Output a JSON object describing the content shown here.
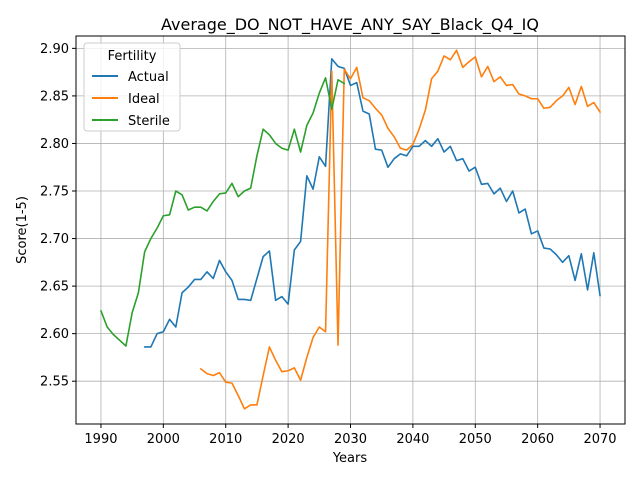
{
  "chart_data": {
    "type": "line",
    "title": "Average_DO_NOT_HAVE_ANY_SAY_Black_Q4_IQ",
    "xlabel": "Years",
    "ylabel": "Score(1-5)",
    "xlim": [
      1986,
      2074
    ],
    "ylim": [
      2.505,
      2.913
    ],
    "xticks": [
      1990,
      2000,
      2010,
      2020,
      2030,
      2040,
      2050,
      2060,
      2070
    ],
    "yticks": [
      2.55,
      2.6,
      2.65,
      2.7,
      2.75,
      2.8,
      2.85,
      2.9
    ],
    "ytick_labels": [
      "2.55",
      "2.60",
      "2.65",
      "2.70",
      "2.75",
      "2.80",
      "2.85",
      "2.90"
    ],
    "grid": true,
    "legend": {
      "title": "Fertility",
      "placement": "top-left"
    },
    "series": [
      {
        "name": "Actual",
        "color": "#1f77b4",
        "x": [
          1997,
          1998,
          1999,
          2000,
          2001,
          2002,
          2003,
          2004,
          2005,
          2006,
          2007,
          2008,
          2009,
          2010,
          2011,
          2012,
          2013,
          2014,
          2015,
          2016,
          2017,
          2018,
          2019,
          2020,
          2021,
          2022,
          2023,
          2024,
          2025,
          2026,
          2027,
          2028,
          2029,
          2030,
          2031,
          2032,
          2033,
          2034,
          2035,
          2036,
          2037,
          2038,
          2039,
          2040,
          2041,
          2042,
          2043,
          2044,
          2045,
          2046,
          2047,
          2048,
          2049,
          2050,
          2051,
          2052,
          2053,
          2054,
          2055,
          2056,
          2057,
          2058,
          2059,
          2060,
          2061,
          2062,
          2063,
          2064,
          2065,
          2066,
          2067,
          2068,
          2069,
          2070
        ],
        "values": [
          2.586,
          2.586,
          2.6,
          2.602,
          2.615,
          2.607,
          2.643,
          2.649,
          2.657,
          2.657,
          2.665,
          2.658,
          2.677,
          2.665,
          2.656,
          2.636,
          2.636,
          2.635,
          2.658,
          2.681,
          2.687,
          2.635,
          2.639,
          2.631,
          2.688,
          2.697,
          2.766,
          2.752,
          2.786,
          2.776,
          2.889,
          2.881,
          2.879,
          2.861,
          2.864,
          2.834,
          2.831,
          2.794,
          2.793,
          2.775,
          2.784,
          2.789,
          2.787,
          2.797,
          2.797,
          2.803,
          2.797,
          2.805,
          2.791,
          2.797,
          2.782,
          2.784,
          2.771,
          2.775,
          2.757,
          2.758,
          2.747,
          2.753,
          2.739,
          2.75,
          2.727,
          2.731,
          2.705,
          2.708,
          2.69,
          2.689,
          2.683,
          2.675,
          2.682,
          2.656,
          2.684,
          2.646,
          2.685,
          2.64
        ]
      },
      {
        "name": "Ideal",
        "color": "#ff7f0e",
        "x": [
          2006,
          2007,
          2008,
          2009,
          2010,
          2011,
          2012,
          2013,
          2014,
          2015,
          2016,
          2017,
          2018,
          2019,
          2020,
          2021,
          2022,
          2023,
          2024,
          2025,
          2026,
          2027,
          2028,
          2029,
          2030,
          2031,
          2032,
          2033,
          2034,
          2035,
          2036,
          2037,
          2038,
          2039,
          2040,
          2041,
          2042,
          2043,
          2044,
          2045,
          2046,
          2047,
          2048,
          2049,
          2050,
          2051,
          2052,
          2053,
          2054,
          2055,
          2056,
          2057,
          2058,
          2059,
          2060,
          2061,
          2062,
          2063,
          2064,
          2065,
          2066,
          2067,
          2068,
          2069,
          2070
        ],
        "values": [
          2.563,
          2.558,
          2.556,
          2.559,
          2.549,
          2.548,
          2.535,
          2.521,
          2.525,
          2.525,
          2.556,
          2.586,
          2.572,
          2.56,
          2.561,
          2.564,
          2.551,
          2.575,
          2.596,
          2.607,
          2.602,
          2.876,
          2.588,
          2.878,
          2.868,
          2.88,
          2.848,
          2.845,
          2.837,
          2.83,
          2.816,
          2.807,
          2.795,
          2.793,
          2.799,
          2.815,
          2.835,
          2.868,
          2.876,
          2.892,
          2.888,
          2.898,
          2.88,
          2.886,
          2.891,
          2.87,
          2.881,
          2.865,
          2.87,
          2.861,
          2.862,
          2.852,
          2.85,
          2.847,
          2.847,
          2.837,
          2.838,
          2.845,
          2.85,
          2.859,
          2.841,
          2.86,
          2.839,
          2.843,
          2.833
        ]
      },
      {
        "name": "Sterile",
        "color": "#2ca02c",
        "x": [
          1990,
          1991,
          1992,
          1993,
          1994,
          1995,
          1996,
          1997,
          1998,
          1999,
          2000,
          2001,
          2002,
          2003,
          2004,
          2005,
          2006,
          2007,
          2008,
          2009,
          2010,
          2011,
          2012,
          2013,
          2014,
          2015,
          2016,
          2017,
          2018,
          2019,
          2020,
          2021,
          2022,
          2023,
          2024,
          2025,
          2026,
          2027,
          2028,
          2029
        ],
        "values": [
          2.624,
          2.607,
          2.599,
          2.593,
          2.587,
          2.622,
          2.643,
          2.686,
          2.7,
          2.711,
          2.724,
          2.725,
          2.75,
          2.746,
          2.73,
          2.733,
          2.733,
          2.729,
          2.739,
          2.747,
          2.748,
          2.758,
          2.744,
          2.75,
          2.753,
          2.787,
          2.815,
          2.809,
          2.8,
          2.795,
          2.793,
          2.815,
          2.791,
          2.819,
          2.832,
          2.853,
          2.869,
          2.836,
          2.867,
          2.863
        ]
      }
    ]
  }
}
